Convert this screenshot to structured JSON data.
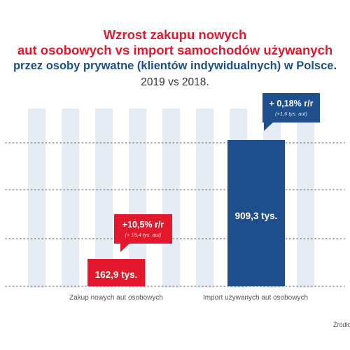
{
  "titles": {
    "line1": "Wzrost zakupu nowych",
    "line2": "aut osobowych vs import samochodów używanych",
    "line3": "przez osoby prywatne (klientów indywidualnych) w Polsce.",
    "line4": "2019 vs 2018."
  },
  "source_text": "Źródło",
  "colors": {
    "red": "#e3182d",
    "navy": "#1f4e8c",
    "stripe": "#e6ecf4",
    "label_gray": "#555555"
  },
  "chart_data": {
    "type": "bar",
    "categories": [
      "Zakup nowych aut osobowych",
      "Import używanych aut osobowych"
    ],
    "values": [
      162.9,
      909.3
    ],
    "value_labels": [
      "162,9 tys.",
      "909,3 tys."
    ],
    "bar_colors": [
      "#e3182d",
      "#1f4e8c"
    ],
    "callouts": [
      {
        "main": "+10,5% r/r",
        "sub": "(+ 15,4 tys. aut)"
      },
      {
        "main": "+ 0,18% r/r",
        "sub": "(+1,6 tys. aut)"
      }
    ],
    "grid": true,
    "legend": "none"
  }
}
